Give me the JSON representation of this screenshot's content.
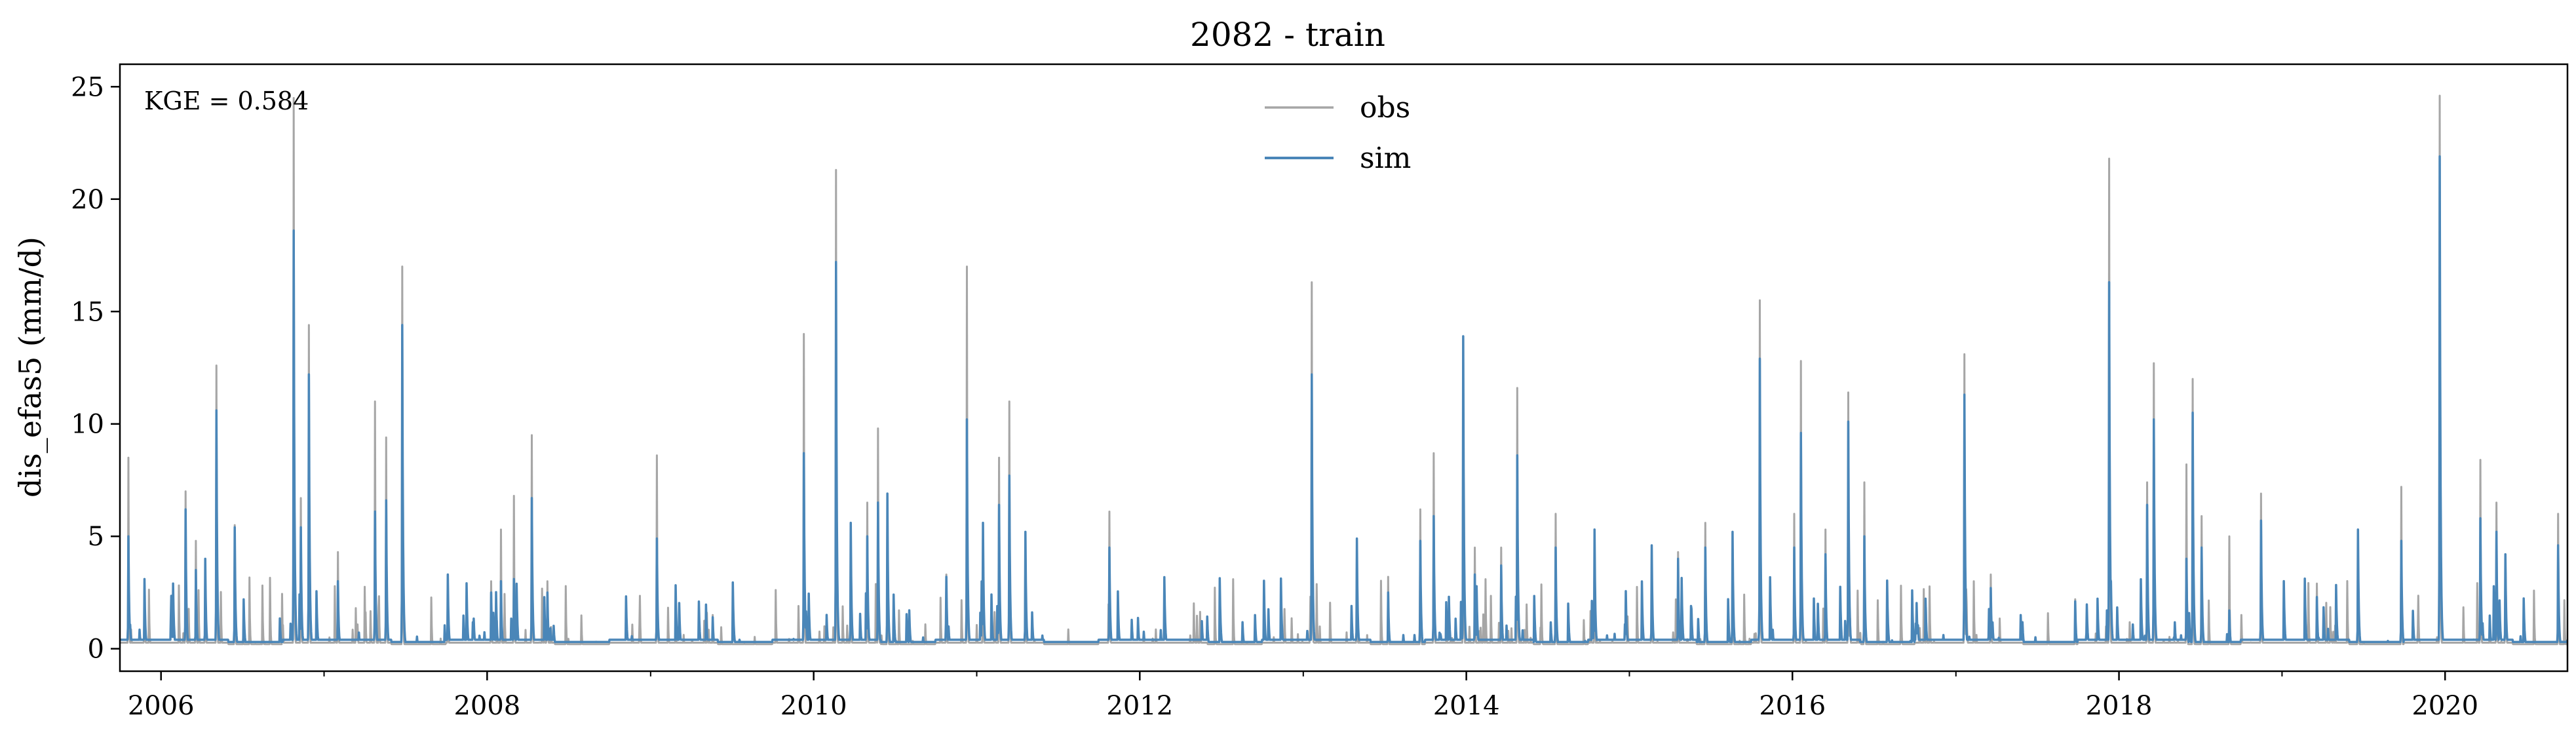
{
  "chart_data": {
    "type": "line",
    "title": "2082 - train",
    "xlabel": "",
    "ylabel": "dis_efas5 (mm/d)",
    "annotation": "KGE = 0.584",
    "xlim": [
      "2005-10-01",
      "2020-10-01"
    ],
    "ylim": [
      -1,
      26
    ],
    "x_tick_labels": [
      "2006",
      "2008",
      "2010",
      "2012",
      "2014",
      "2016",
      "2018",
      "2020"
    ],
    "y_tick_labels": [
      "0",
      "5",
      "10",
      "15",
      "20",
      "25"
    ],
    "y_ticks": [
      0,
      5,
      10,
      15,
      20,
      25
    ],
    "grid": false,
    "legend_position": "top-center",
    "colors": {
      "obs": "#a6a6a6",
      "sim": "#4a86b8"
    },
    "series": [
      {
        "name": "obs",
        "peaks": [
          [
            "2005-10-20",
            8.5
          ],
          [
            "2005-11-25",
            3.0
          ],
          [
            "2006-02-25",
            7.0
          ],
          [
            "2006-03-20",
            4.8
          ],
          [
            "2006-04-10",
            4.0
          ],
          [
            "2006-05-05",
            12.6
          ],
          [
            "2006-06-15",
            5.5
          ],
          [
            "2006-10-25",
            24.5
          ],
          [
            "2006-11-10",
            6.7
          ],
          [
            "2006-11-28",
            14.4
          ],
          [
            "2007-02-01",
            4.3
          ],
          [
            "2007-04-25",
            11.0
          ],
          [
            "2007-05-20",
            9.4
          ],
          [
            "2007-06-25",
            17.0
          ],
          [
            "2007-10-05",
            3.3
          ],
          [
            "2008-01-10",
            3.0
          ],
          [
            "2008-02-01",
            5.3
          ],
          [
            "2008-03-01",
            6.8
          ],
          [
            "2008-04-10",
            9.5
          ],
          [
            "2008-05-15",
            3.0
          ],
          [
            "2009-01-15",
            8.6
          ],
          [
            "2009-05-20",
            1.5
          ],
          [
            "2009-12-10",
            14.0
          ],
          [
            "2010-02-20",
            21.3
          ],
          [
            "2010-03-25",
            5.5
          ],
          [
            "2010-05-01",
            6.5
          ],
          [
            "2010-05-25",
            9.8
          ],
          [
            "2010-06-15",
            6.9
          ],
          [
            "2010-10-25",
            3.3
          ],
          [
            "2010-12-10",
            17.0
          ],
          [
            "2011-01-15",
            5.5
          ],
          [
            "2011-02-20",
            8.5
          ],
          [
            "2011-03-15",
            11.0
          ],
          [
            "2011-04-20",
            5.2
          ],
          [
            "2011-10-25",
            6.1
          ],
          [
            "2013-01-20",
            16.3
          ],
          [
            "2013-05-01",
            4.8
          ],
          [
            "2013-07-10",
            3.2
          ],
          [
            "2013-09-20",
            6.2
          ],
          [
            "2013-10-20",
            8.7
          ],
          [
            "2013-12-25",
            13.7
          ],
          [
            "2014-01-20",
            4.5
          ],
          [
            "2014-03-20",
            4.5
          ],
          [
            "2014-04-25",
            11.6
          ],
          [
            "2014-07-20",
            6.0
          ],
          [
            "2014-10-15",
            5.3
          ],
          [
            "2015-02-20",
            4.5
          ],
          [
            "2015-04-20",
            4.3
          ],
          [
            "2015-06-20",
            5.6
          ],
          [
            "2015-08-20",
            5.2
          ],
          [
            "2015-10-20",
            15.5
          ],
          [
            "2016-01-05",
            6.0
          ],
          [
            "2016-01-20",
            12.8
          ],
          [
            "2016-03-15",
            5.3
          ],
          [
            "2016-05-05",
            11.4
          ],
          [
            "2016-06-10",
            7.4
          ],
          [
            "2017-01-20",
            13.1
          ],
          [
            "2017-03-20",
            3.3
          ],
          [
            "2017-09-25",
            2.2
          ],
          [
            "2017-12-10",
            21.8
          ],
          [
            "2018-03-05",
            7.4
          ],
          [
            "2018-03-20",
            12.7
          ],
          [
            "2018-06-01",
            8.2
          ],
          [
            "2018-06-15",
            12.0
          ],
          [
            "2018-07-05",
            5.9
          ],
          [
            "2018-09-05",
            5.0
          ],
          [
            "2018-11-15",
            6.9
          ],
          [
            "2019-03-20",
            2.9
          ],
          [
            "2019-06-20",
            5.2
          ],
          [
            "2019-09-25",
            7.2
          ],
          [
            "2019-12-20",
            24.6
          ],
          [
            "2020-03-20",
            8.4
          ],
          [
            "2020-04-25",
            6.5
          ],
          [
            "2020-05-15",
            4.2
          ],
          [
            "2020-09-10",
            6.0
          ]
        ]
      },
      {
        "name": "sim",
        "peaks": [
          [
            "2005-10-20",
            5.0
          ],
          [
            "2005-11-25",
            3.1
          ],
          [
            "2006-02-25",
            6.2
          ],
          [
            "2006-03-20",
            3.5
          ],
          [
            "2006-04-10",
            4.0
          ],
          [
            "2006-05-05",
            10.6
          ],
          [
            "2006-06-15",
            5.4
          ],
          [
            "2006-10-25",
            18.6
          ],
          [
            "2006-11-10",
            5.4
          ],
          [
            "2006-11-28",
            12.2
          ],
          [
            "2007-02-01",
            3.0
          ],
          [
            "2007-04-25",
            6.1
          ],
          [
            "2007-05-20",
            6.6
          ],
          [
            "2007-06-25",
            14.4
          ],
          [
            "2007-10-05",
            3.3
          ],
          [
            "2008-01-10",
            2.5
          ],
          [
            "2008-02-01",
            3.0
          ],
          [
            "2008-03-01",
            3.1
          ],
          [
            "2008-04-10",
            6.7
          ],
          [
            "2008-05-15",
            2.5
          ],
          [
            "2009-01-15",
            4.9
          ],
          [
            "2009-05-20",
            1.4
          ],
          [
            "2009-12-10",
            8.7
          ],
          [
            "2010-02-20",
            17.2
          ],
          [
            "2010-03-25",
            5.6
          ],
          [
            "2010-05-01",
            5.0
          ],
          [
            "2010-05-25",
            6.5
          ],
          [
            "2010-06-15",
            6.9
          ],
          [
            "2010-10-25",
            3.2
          ],
          [
            "2010-12-10",
            10.2
          ],
          [
            "2011-01-15",
            5.6
          ],
          [
            "2011-02-20",
            6.4
          ],
          [
            "2011-03-15",
            7.7
          ],
          [
            "2011-04-20",
            5.2
          ],
          [
            "2011-10-25",
            4.5
          ],
          [
            "2013-01-20",
            12.2
          ],
          [
            "2013-05-01",
            4.9
          ],
          [
            "2013-07-10",
            2.5
          ],
          [
            "2013-09-20",
            4.8
          ],
          [
            "2013-10-20",
            5.9
          ],
          [
            "2013-12-25",
            13.9
          ],
          [
            "2014-01-20",
            3.3
          ],
          [
            "2014-03-20",
            3.7
          ],
          [
            "2014-04-25",
            8.6
          ],
          [
            "2014-07-20",
            4.5
          ],
          [
            "2014-10-15",
            5.3
          ],
          [
            "2015-02-20",
            4.6
          ],
          [
            "2015-04-20",
            4.0
          ],
          [
            "2015-06-20",
            4.5
          ],
          [
            "2015-08-20",
            5.2
          ],
          [
            "2015-10-20",
            12.9
          ],
          [
            "2016-01-05",
            4.5
          ],
          [
            "2016-01-20",
            9.6
          ],
          [
            "2016-03-15",
            4.2
          ],
          [
            "2016-05-05",
            10.1
          ],
          [
            "2016-06-10",
            5.0
          ],
          [
            "2017-01-20",
            11.3
          ],
          [
            "2017-03-20",
            2.7
          ],
          [
            "2017-09-25",
            2.1
          ],
          [
            "2017-12-10",
            16.3
          ],
          [
            "2018-03-05",
            6.4
          ],
          [
            "2018-03-20",
            10.2
          ],
          [
            "2018-06-01",
            4.0
          ],
          [
            "2018-06-15",
            10.5
          ],
          [
            "2018-07-05",
            4.5
          ],
          [
            "2018-09-05",
            1.7
          ],
          [
            "2018-11-15",
            5.7
          ],
          [
            "2019-03-20",
            2.3
          ],
          [
            "2019-06-20",
            5.3
          ],
          [
            "2019-09-25",
            4.8
          ],
          [
            "2019-12-20",
            21.9
          ],
          [
            "2020-03-20",
            5.8
          ],
          [
            "2020-04-25",
            5.2
          ],
          [
            "2020-05-15",
            4.2
          ],
          [
            "2020-09-10",
            4.6
          ]
        ]
      }
    ]
  }
}
